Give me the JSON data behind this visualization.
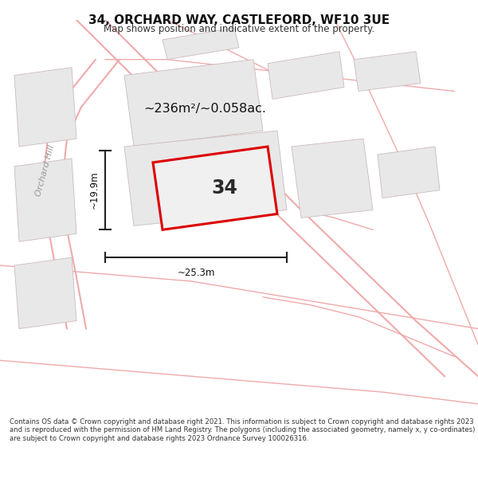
{
  "title": "34, ORCHARD WAY, CASTLEFORD, WF10 3UE",
  "subtitle": "Map shows position and indicative extent of the property.",
  "area_text": "~236m²/~0.058ac.",
  "width_label": "~25.3m",
  "height_label": "~19.9m",
  "number_label": "34",
  "footer": "Contains OS data © Crown copyright and database right 2021. This information is subject to Crown copyright and database rights 2023 and is reproduced with the permission of HM Land Registry. The polygons (including the associated geometry, namely x, y co-ordinates) are subject to Crown copyright and database rights 2023 Ordnance Survey 100026316.",
  "background_color": "#ffffff",
  "road_color": "#f0aaaa",
  "building_fill": "#e8e8e8",
  "building_edge": "#ccbbbb",
  "plot_edge": "#dd0000",
  "plot_fill": "#f0f0f0",
  "orchard_hill_label": "Orchard Hill",
  "road_lw": 1.0,
  "plot_lw": 2.2
}
